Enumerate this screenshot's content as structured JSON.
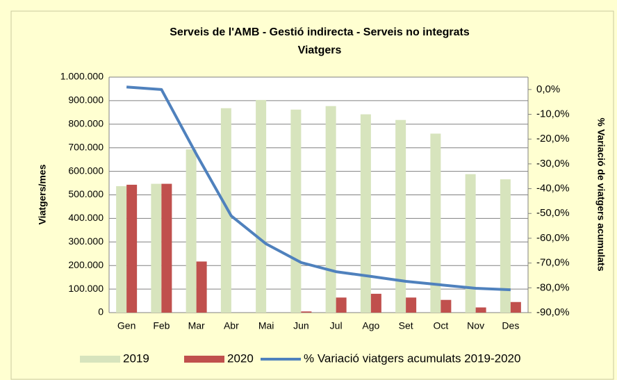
{
  "chart_data": {
    "type": "bar_line",
    "title": "Serveis de l'AMB  - Gestió indirecta - Serveis no integrats",
    "subtitle": "Viatgers",
    "y_label": "Viatgers/mes",
    "y2_label": "% Variació de viatgers acumulats",
    "categories": [
      "Gen",
      "Feb",
      "Mar",
      "Abr",
      "Mai",
      "Jun",
      "Jul",
      "Ago",
      "Set",
      "Oct",
      "Nov",
      "Des"
    ],
    "series": [
      {
        "name": "2019",
        "type": "bar",
        "color": "#d7e4bd",
        "values": [
          537000,
          547000,
          693000,
          868000,
          903000,
          862000,
          877000,
          842000,
          818000,
          760000,
          588000,
          566000
        ]
      },
      {
        "name": "2020",
        "type": "bar",
        "color": "#c0504d",
        "values": [
          543000,
          547000,
          217000,
          0,
          0,
          5000,
          64000,
          80000,
          64000,
          54000,
          22000,
          45000
        ]
      },
      {
        "name": "% Variació viatgers acumulats 2019-2020",
        "type": "line",
        "axis": "y2",
        "color": "#4f81bd",
        "values": [
          1.0,
          0.0,
          -26.1,
          -51.0,
          -62.3,
          -69.8,
          -73.5,
          -75.4,
          -77.4,
          -78.8,
          -80.2,
          -80.8
        ]
      }
    ],
    "ylim": [
      0,
      1000000
    ],
    "yticks": [
      0,
      {
        "value": 100000,
        "label": "100.000"
      },
      {
        "value": 200000,
        "label": "200.000"
      },
      {
        "value": 300000,
        "label": "300.000"
      },
      {
        "value": 400000,
        "label": "400.000"
      },
      {
        "value": 500000,
        "label": "500.000"
      },
      {
        "value": 600000,
        "label": "600.000"
      },
      {
        "value": 700000,
        "label": "700.000"
      },
      {
        "value": 800000,
        "label": "800.000"
      },
      {
        "value": 900000,
        "label": "900.000"
      },
      {
        "value": 1000000,
        "label": "1.000.000"
      }
    ],
    "y2lim": [
      -90,
      5
    ],
    "y2ticks": [
      {
        "value": 0,
        "label": "0,0%"
      },
      {
        "value": -10,
        "label": "-10,0%"
      },
      {
        "value": -20,
        "label": "-20,0%"
      },
      {
        "value": -30,
        "label": "-30,0%"
      },
      {
        "value": -40,
        "label": "-40,0%"
      },
      {
        "value": -50,
        "label": "-50,0%"
      },
      {
        "value": -60,
        "label": "-60,0%"
      },
      {
        "value": -70,
        "label": "-70,0%"
      },
      {
        "value": -80,
        "label": "-80,0%"
      },
      {
        "value": -90,
        "label": "-90,0%"
      }
    ],
    "grid": true,
    "legend": "bottom"
  }
}
